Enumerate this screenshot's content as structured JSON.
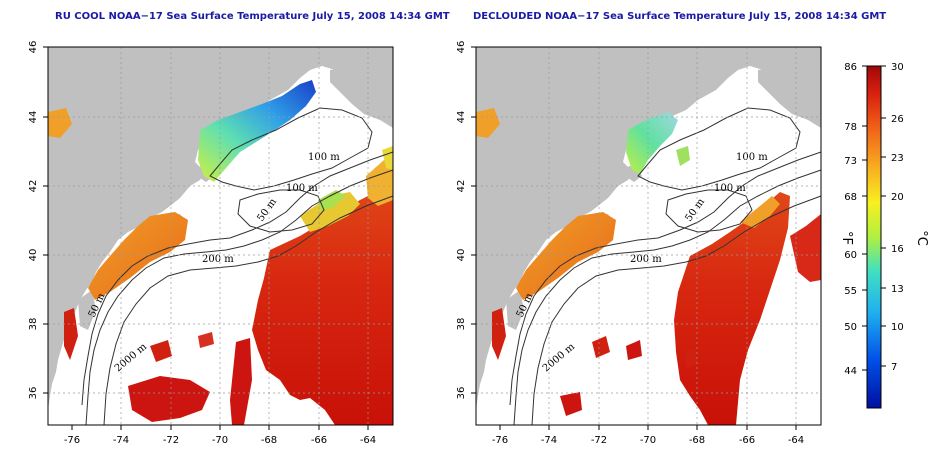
{
  "panels": [
    {
      "id": "left",
      "title": "RU COOL NOAA−17 Sea Surface Temperature July 15, 2008 14:34 GMT",
      "contour_labels": [
        "100 m",
        "100 m",
        "50 m",
        "200 m",
        "50 m",
        "2000 m"
      ]
    },
    {
      "id": "right",
      "title": "DECLOUDED NOAA−17 Sea Surface Temperature July 15, 2008 14:34 GMT",
      "contour_labels": [
        "100 m",
        "100 m",
        "50 m",
        "200 m",
        "50 m",
        "2000 m"
      ]
    }
  ],
  "map_axes": {
    "lon_ticks": [
      "-76",
      "-74",
      "-72",
      "-70",
      "-68",
      "-66",
      "-64"
    ],
    "lat_ticks": [
      "46",
      "44",
      "42",
      "40",
      "38",
      "36"
    ],
    "lon_range": [
      -77,
      -63
    ],
    "lat_range": [
      35,
      46
    ]
  },
  "colorbar": {
    "fahrenheit_ticks": [
      "86",
      "78",
      "73",
      "68",
      "60",
      "55",
      "50",
      "44"
    ],
    "celsius_ticks": [
      "30",
      "26",
      "23",
      "20",
      "16",
      "13",
      "10",
      "7"
    ],
    "fahrenheit_unit": "°F",
    "celsius_unit": "°C",
    "range_c": [
      4,
      30
    ]
  },
  "colors": {
    "land": "#c0c0c0",
    "ocean_no_data": "#ffffff",
    "title_blue": "#1a1aa6",
    "warm_red": "#cc1010",
    "warm_orange": "#e8701c",
    "mid_yellow": "#f2e020",
    "cool_cyan": "#30d0d8",
    "cold_blue": "#1030c8"
  }
}
